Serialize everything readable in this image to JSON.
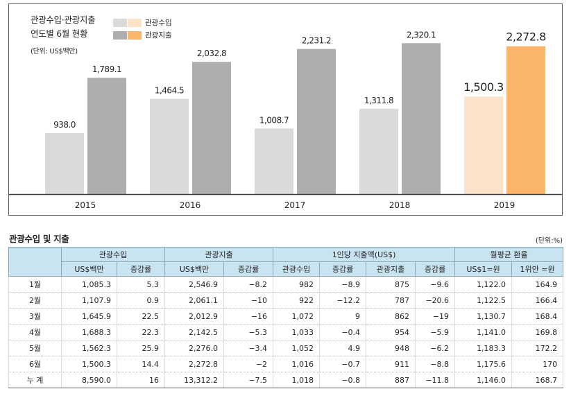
{
  "chart_data": {
    "type": "bar",
    "title": "관광수입·관광지출",
    "subtitle": "연도별 6월 현황",
    "unit_label": "(단위: US$백만)",
    "categories": [
      "2015",
      "2016",
      "2017",
      "2018",
      "2019"
    ],
    "series": [
      {
        "name": "관광수입",
        "values": [
          938.0,
          1464.5,
          1008.7,
          1311.8,
          1500.3
        ],
        "labels": [
          "938.0",
          "1,464.5",
          "1,008.7",
          "1,311.8",
          "1,500.3"
        ]
      },
      {
        "name": "관광지출",
        "values": [
          1789.1,
          2032.8,
          2231.2,
          2320.1,
          2272.8
        ],
        "labels": [
          "1,789.1",
          "2,032.8",
          "2,231.2",
          "2,320.1",
          "2,272.8"
        ]
      }
    ],
    "highlight_category": "2019",
    "ylim": [
      0,
      2600
    ],
    "colors": {
      "income": "#d9dadb",
      "expense": "#adaeaf",
      "income_highlight": "#fde3c8",
      "expense_highlight": "#fbb56a",
      "axis": "#3b3b3b"
    },
    "legend": {
      "position": "top"
    }
  },
  "table": {
    "title": "관광수입 및 지출",
    "unit": "(단위:%)",
    "group_headers": [
      "관광수입",
      "관광지출",
      "1인당 지출액(US$)",
      "월평균 환율"
    ],
    "sub_headers": [
      "US$백만",
      "증감률",
      "US$백만",
      "증감률",
      "관광수입",
      "증감률",
      "관광지출",
      "증감률",
      "US$1=원",
      "1위안 =원"
    ],
    "rows": [
      {
        "label": "1월",
        "cells": [
          "1,085.3",
          "5.3",
          "2,546.9",
          "−8.2",
          "982",
          "−8.9",
          "875",
          "−9.6",
          "1,122.0",
          "164.9"
        ]
      },
      {
        "label": "2월",
        "cells": [
          "1,107.9",
          "0.9",
          "2,061.1",
          "−10",
          "922",
          "−12.2",
          "787",
          "−20.6",
          "1,122.5",
          "166.4"
        ]
      },
      {
        "label": "3월",
        "cells": [
          "1,645.9",
          "22.5",
          "2,012.9",
          "−16",
          "1,072",
          "9",
          "862",
          "−19",
          "1,130.7",
          "168.4"
        ]
      },
      {
        "label": "4월",
        "cells": [
          "1,688.3",
          "22.3",
          "2,142.5",
          "−5.3",
          "1,033",
          "−0.4",
          "954",
          "−5.9",
          "1,141.0",
          "169.8"
        ]
      },
      {
        "label": "5월",
        "cells": [
          "1,562.3",
          "25.9",
          "2,276.0",
          "−3.4",
          "1,052",
          "4.9",
          "948",
          "−6.2",
          "1,183.3",
          "172.2"
        ]
      },
      {
        "label": "6월",
        "cells": [
          "1,500.3",
          "14.4",
          "2,272.8",
          "−2",
          "1,016",
          "−0.7",
          "911",
          "−8.8",
          "1,175.6",
          "170"
        ]
      },
      {
        "label": "누 계",
        "cells": [
          "8,590.0",
          "16",
          "13,312.2",
          "−7.5",
          "1,018",
          "−0.8",
          "887",
          "−11.8",
          "1,146.0",
          "168.7"
        ]
      }
    ]
  }
}
